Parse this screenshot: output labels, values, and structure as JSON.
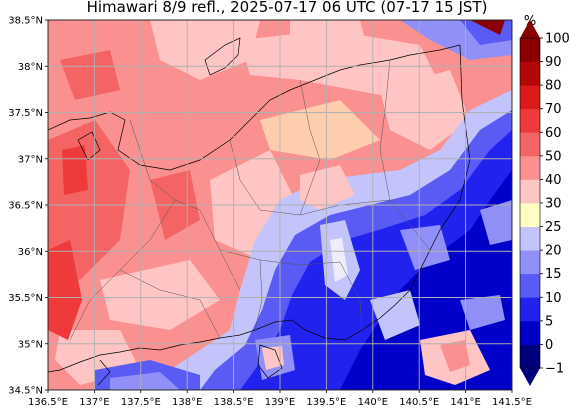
{
  "title": "Himawari 8/9 refl., 2025-07-17 06 UTC (07-17 15 JST)",
  "lat_ticks": [
    "38.5°N",
    "38°N",
    "37.5°N",
    "37°N",
    "36.5°N",
    "36°N",
    "35.5°N",
    "35°N",
    "34.5°N"
  ],
  "lon_ticks": [
    "136.5°E",
    "137°E",
    "137.5°E",
    "138°E",
    "138.5°E",
    "139°E",
    "139.5°E",
    "140°E",
    "140.5°E",
    "141°E",
    "141.5°E"
  ],
  "lat_range": [
    34.5,
    38.5
  ],
  "lon_range": [
    136.5,
    141.5
  ],
  "colorbar": {
    "unit": "%",
    "tick_labels": [
      "100",
      "90",
      "80",
      "70",
      "60",
      "50",
      "40",
      "30",
      "25",
      "20",
      "15",
      "10",
      "5",
      "0",
      "−1"
    ],
    "bounds": [
      -1,
      0,
      5,
      10,
      15,
      20,
      25,
      30,
      40,
      50,
      60,
      70,
      80,
      90,
      100
    ],
    "colors": [
      "#00007a",
      "#0000c8",
      "#2222ee",
      "#5a5af4",
      "#9090f8",
      "#c4c4fc",
      "#ffffc4",
      "#ffc4c4",
      "#fa9090",
      "#f46464",
      "#ee3a3a",
      "#dc1a1a",
      "#b40808",
      "#8a0000"
    ],
    "under_color": "#00007a",
    "over_color": "#8a0000"
  }
}
